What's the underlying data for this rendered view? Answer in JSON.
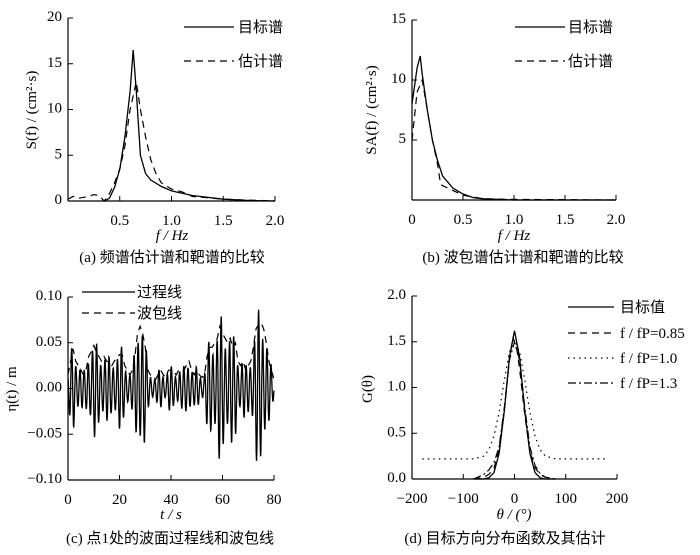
{
  "chart_data": [
    {
      "id": "a",
      "type": "line",
      "caption": "(a) 频谱估计谱和靶谱的比较",
      "xlabel": "f / Hz",
      "ylabel": "S(f) / (cm²·s)",
      "xlim": [
        0,
        2.0
      ],
      "ylim": [
        0,
        20
      ],
      "xticks": [
        0.5,
        1.0,
        1.5,
        2.0
      ],
      "xticklabels": [
        "0.5",
        "1.0",
        "1.5",
        "2.0"
      ],
      "yticks": [
        0,
        5,
        10,
        15,
        20
      ],
      "yticklabels": [
        "0",
        "5",
        "10",
        "15",
        "20"
      ],
      "series": [
        {
          "name": "目标谱",
          "style": "solid",
          "x": [
            0.35,
            0.4,
            0.45,
            0.5,
            0.55,
            0.6,
            0.63,
            0.66,
            0.7,
            0.75,
            0.8,
            0.9,
            1.0,
            1.2,
            1.5,
            1.75,
            2.0
          ],
          "y": [
            0,
            0.3,
            1.5,
            3.5,
            7,
            12,
            16.5,
            12,
            5,
            3,
            2.3,
            1.6,
            1.1,
            0.6,
            0.2,
            0.05,
            0
          ]
        },
        {
          "name": "估计谱",
          "style": "dashed",
          "x": [
            0,
            0.05,
            0.1,
            0.2,
            0.25,
            0.3,
            0.35,
            0.4,
            0.45,
            0.5,
            0.55,
            0.6,
            0.63,
            0.66,
            0.7,
            0.75,
            0.8,
            0.85,
            0.9,
            1.0,
            1.1,
            1.2,
            1.5,
            2.0
          ],
          "y": [
            0.2,
            0.5,
            0.3,
            0.5,
            0.7,
            0.6,
            0,
            0.8,
            2,
            3.5,
            6,
            10,
            11.5,
            13,
            10,
            7,
            4.5,
            3,
            2,
            1.3,
            1,
            0.5,
            0.2,
            0
          ]
        }
      ]
    },
    {
      "id": "b",
      "type": "line",
      "caption": "(b) 波包谱估计谱和靶谱的比较",
      "xlabel": "f / Hz",
      "ylabel": "SA(f) / (cm²·s)",
      "xlim": [
        0,
        2.0
      ],
      "ylim": [
        0,
        15
      ],
      "xticks": [
        0,
        0.5,
        1.0,
        1.5,
        2.0
      ],
      "xticklabels": [
        "0",
        "0.5",
        "1.0",
        "1.5",
        "2.0"
      ],
      "yticks": [
        5,
        10,
        15
      ],
      "yticklabels": [
        "5",
        "10",
        "15"
      ],
      "series": [
        {
          "name": "目标谱",
          "style": "solid",
          "x": [
            0,
            0.05,
            0.08,
            0.1,
            0.15,
            0.2,
            0.25,
            0.3,
            0.4,
            0.5,
            0.6,
            0.7,
            1.0,
            2.0
          ],
          "y": [
            8,
            11,
            12,
            10.5,
            7.5,
            5,
            3.3,
            2,
            1,
            0.5,
            0.2,
            0.1,
            0,
            0
          ]
        },
        {
          "name": "估计谱",
          "style": "dashed",
          "x": [
            0,
            0.05,
            0.1,
            0.15,
            0.2,
            0.25,
            0.28,
            0.3,
            0.4,
            0.5,
            0.7,
            1.0,
            2.0
          ],
          "y": [
            5,
            9,
            10,
            7.5,
            5,
            3,
            1.3,
            1.2,
            0.8,
            0.4,
            0.1,
            0.05,
            0
          ]
        }
      ]
    },
    {
      "id": "c",
      "type": "line",
      "caption": "(c) 点1处的波面过程线和波包线",
      "xlabel": "t / s",
      "ylabel": "η(t) / m",
      "xlim": [
        0,
        80
      ],
      "ylim": [
        -0.1,
        0.1
      ],
      "xticks": [
        0,
        20,
        40,
        60,
        80
      ],
      "xticklabels": [
        "0",
        "20",
        "40",
        "60",
        "80"
      ],
      "yticks": [
        -0.1,
        -0.05,
        0.0,
        0.05,
        0.1
      ],
      "yticklabels": [
        "−0.10",
        "−0.05",
        "0.00",
        "0.05",
        "0.10"
      ],
      "carrier_frequency_hz": 0.62,
      "envelope_t_step_s": 1,
      "envelope": [
        0.015,
        0.03,
        0.043,
        0.03,
        0.025,
        0.02,
        0.015,
        0.02,
        0.035,
        0.04,
        0.047,
        0.04,
        0.035,
        0.03,
        0.035,
        0.03,
        0.028,
        0.025,
        0.03,
        0.033,
        0.037,
        0.037,
        0.025,
        0.02,
        0.015,
        0.02,
        0.035,
        0.06,
        0.068,
        0.06,
        0.045,
        0.02,
        0.015,
        0.012,
        0.01,
        0.015,
        0.02,
        0.015,
        0.012,
        0.02,
        0.02,
        0.018,
        0.015,
        0.02,
        0.018,
        0.02,
        0.025,
        0.03,
        0.02,
        0.015,
        0.02,
        0.015,
        0.012,
        0.015,
        0.035,
        0.045,
        0.045,
        0.05,
        0.055,
        0.068,
        0.06,
        0.055,
        0.05,
        0.055,
        0.045,
        0.05,
        0.03,
        0.025,
        0.03,
        0.02,
        0.025,
        0.03,
        0.045,
        0.065,
        0.07,
        0.072,
        0.065,
        0.05,
        0.03,
        0.02,
        0.01
      ],
      "series": [
        {
          "name": "过程线",
          "style": "solid"
        },
        {
          "name": "波包线",
          "style": "dashed"
        }
      ]
    },
    {
      "id": "d",
      "type": "line",
      "caption": "(d) 目标方向分布函数及其估计",
      "xlabel": "θ / (°)",
      "ylabel": "G(θ)",
      "xlim": [
        -200,
        200
      ],
      "ylim": [
        0,
        2.0
      ],
      "xticks": [
        -200,
        -100,
        0,
        100,
        200
      ],
      "xticklabels": [
        "−200",
        "−100",
        "0",
        "100",
        "200"
      ],
      "yticks": [
        0,
        0.5,
        1.0,
        1.5,
        2.0
      ],
      "yticklabels": [
        "0.0",
        "0.5",
        "1.0",
        "1.5",
        "2.0"
      ],
      "series": [
        {
          "name": "目标值",
          "style": "solid",
          "x": [
            -80,
            -60,
            -50,
            -40,
            -30,
            -20,
            -10,
            0,
            10,
            20,
            30,
            40,
            50,
            60,
            80
          ],
          "y": [
            0,
            0,
            0.013,
            0.07,
            0.28,
            0.74,
            1.33,
            1.62,
            1.33,
            0.74,
            0.28,
            0.07,
            0.013,
            0,
            0
          ]
        },
        {
          "name": "f / fP=0.85",
          "style": "dashed",
          "x": [
            -80,
            -60,
            -50,
            -40,
            -30,
            -20,
            -10,
            -3,
            5,
            10,
            20,
            30,
            40,
            50,
            60,
            80
          ],
          "y": [
            0,
            0.02,
            0.05,
            0.12,
            0.33,
            0.75,
            1.3,
            1.55,
            1.4,
            1.2,
            0.7,
            0.3,
            0.12,
            0.05,
            0.02,
            0
          ]
        },
        {
          "name": "f / fP=1.0",
          "style": "dotted",
          "x": [
            -180,
            -80,
            -60,
            -50,
            -40,
            -30,
            -20,
            -10,
            0,
            10,
            20,
            30,
            40,
            50,
            60,
            80,
            180
          ],
          "y": [
            0.22,
            0.22,
            0.25,
            0.32,
            0.47,
            0.73,
            1.08,
            1.39,
            1.52,
            1.39,
            1.08,
            0.73,
            0.47,
            0.32,
            0.25,
            0.22,
            0.22
          ]
        },
        {
          "name": "f / fP=1.3",
          "style": "dashdot",
          "x": [
            -80,
            -60,
            -50,
            -40,
            -30,
            -20,
            -10,
            0,
            10,
            20,
            30,
            40,
            50,
            60,
            80
          ],
          "y": [
            0,
            0.05,
            0.1,
            0.18,
            0.35,
            0.78,
            1.3,
            1.5,
            1.3,
            0.78,
            0.35,
            0.15,
            0.06,
            0.02,
            0
          ]
        }
      ]
    }
  ]
}
